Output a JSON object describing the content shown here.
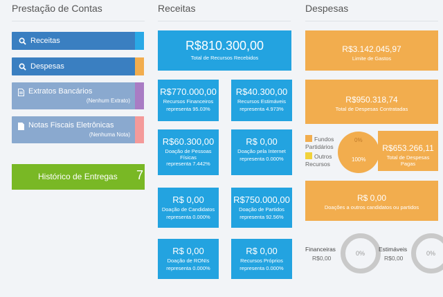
{
  "columns": {
    "prestacao": "Prestação de Contas",
    "receitas": "Receitas",
    "despesas": "Despesas"
  },
  "left": {
    "receitas_btn": "Receitas",
    "despesas_btn": "Despesas",
    "extratos": {
      "label": "Extratos Bancários",
      "sub": "(Nenhum Extrato)"
    },
    "notas": {
      "label": "Notas Fiscais Eletrônicas",
      "sub": "(Nenhuma Nota)"
    },
    "historico": {
      "label": "Histórico de Entregas",
      "count": "7"
    }
  },
  "receitas": {
    "total": {
      "value": "R$810.300,00",
      "label": "Total de Recursos Recebidos"
    },
    "financeiros": {
      "value": "R$770.000,00",
      "label": "Recursos Financeiros",
      "pct": "representa 95.03%"
    },
    "estimaveis": {
      "value": "R$40.300,00",
      "label": "Recursos Estimáveis",
      "pct": "representa 4.973%"
    },
    "pessoas": {
      "value": "R$60.300,00",
      "label1": "Doação de Pessoas",
      "label2": "Físicas",
      "pct": "representa 7.442%"
    },
    "internet": {
      "value": "R$ 0,00",
      "label": "Doação pela Internet",
      "pct": "representa 0.000%"
    },
    "candidatos": {
      "value": "R$ 0,00",
      "label": "Doação de Candidatos",
      "pct": "representa 0.000%"
    },
    "partidos": {
      "value": "R$750.000,00",
      "label": "Doação de Partidos",
      "pct": "representa 92.56%"
    },
    "ronis": {
      "value": "R$ 0,00",
      "label": "Doação de RONIs",
      "pct": "representa 0.000%"
    },
    "proprios": {
      "value": "R$ 0,00",
      "label": "Recursos Próprios",
      "pct": "representa 0.000%"
    }
  },
  "despesas": {
    "limite": {
      "value": "R$3.142.045,97",
      "label": "Limite de Gastos"
    },
    "contratadas": {
      "value": "R$950.318,74",
      "label": "Total de Despesas Contratadas"
    },
    "pagas": {
      "value": "R$653.266,11",
      "label1": "Total de Despesas",
      "label2": "Pagas"
    },
    "legend": {
      "fundos1": "Fundos",
      "fundos2": "Partidários",
      "outros1": "Outros",
      "outros2": "Recursos"
    },
    "pie": {
      "top_pct": "0%",
      "bottom_pct": "100%"
    },
    "doacoes": {
      "value": "R$ 0,00",
      "label": "Doações a outros candidatos ou partidos"
    },
    "financeiras": {
      "label": "Financeiras",
      "value": "R$0,00",
      "pct": "0%"
    },
    "estimaveis": {
      "label": "Estimáveis",
      "value": "R$0,00",
      "pct": "0%"
    }
  },
  "colors": {
    "blue_btn": "#3a7fc1",
    "light_btn": "#8aa9cf",
    "green": "#79b825",
    "cyan": "#23a3e0",
    "orange": "#f2ad4e",
    "yellow": "#f1d23b",
    "tab_cyan": "#2aa9e6",
    "tab_orange": "#f2ad4e",
    "tab_purple": "#a97cc4",
    "tab_pink": "#f49a9a"
  }
}
